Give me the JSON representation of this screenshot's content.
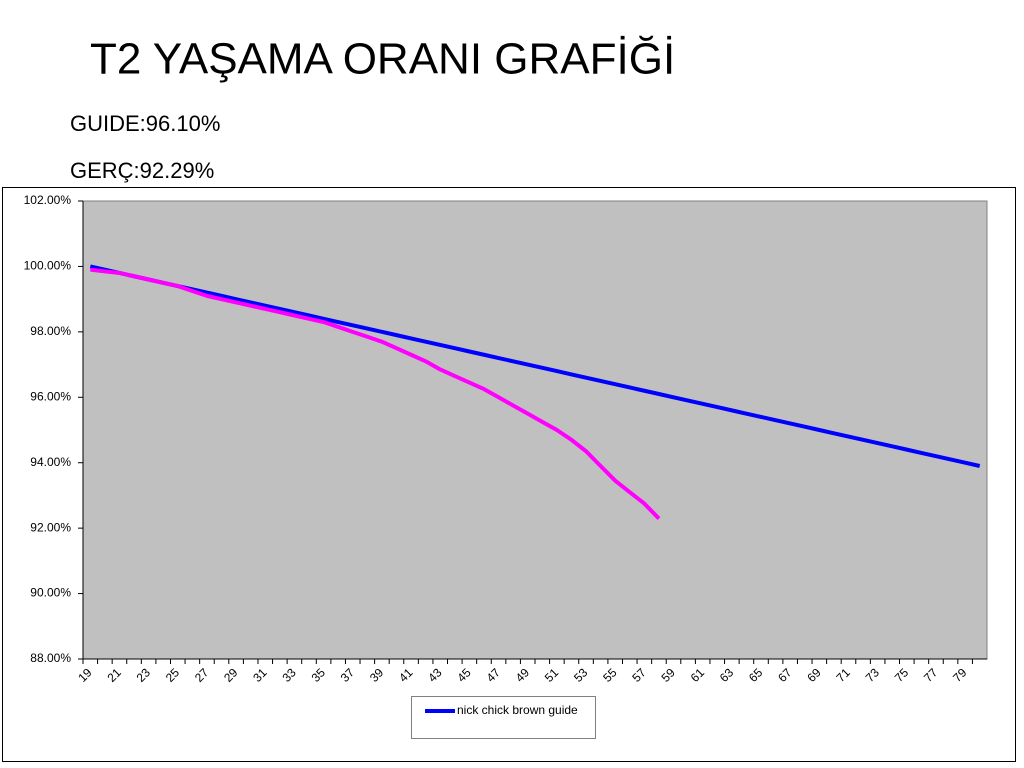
{
  "chart_data": {
    "type": "line",
    "title": "T2    YAŞAMA ORANI GRAFİĞİ",
    "annotations": [
      "GUIDE:96.10%",
      "GERÇ:92.29%"
    ],
    "categories": [
      19,
      null,
      21,
      null,
      23,
      null,
      25,
      null,
      27,
      null,
      29,
      null,
      31,
      null,
      33,
      null,
      35,
      null,
      37,
      null,
      39,
      null,
      41,
      null,
      43,
      null,
      45,
      null,
      47,
      null,
      49,
      null,
      51,
      null,
      53,
      null,
      55,
      null,
      57,
      null,
      59,
      null,
      61,
      null,
      63,
      null,
      65,
      null,
      67,
      null,
      69,
      null,
      71,
      null,
      73,
      null,
      75,
      null,
      77,
      null,
      79,
      null
    ],
    "series": [
      {
        "name": "nick chick brown guide",
        "color": "#0000ff",
        "values": [
          100.0,
          99.9,
          99.8,
          99.7,
          99.6,
          99.5,
          99.4,
          99.3,
          99.2,
          99.1,
          99.0,
          98.9,
          98.8,
          98.7,
          98.6,
          98.5,
          98.4,
          98.3,
          98.2,
          98.1,
          98.0,
          97.9,
          97.8,
          97.7,
          97.6,
          97.5,
          97.4,
          97.3,
          97.2,
          97.1,
          97.0,
          96.9,
          96.8,
          96.7,
          96.6,
          96.5,
          96.4,
          96.3,
          96.2,
          96.1,
          96.0,
          95.9,
          95.8,
          95.7,
          95.6,
          95.5,
          95.4,
          95.3,
          95.2,
          95.1,
          95.0,
          94.9,
          94.8,
          94.7,
          94.6,
          94.5,
          94.4,
          94.3,
          94.2,
          94.1,
          94.0,
          93.9
        ]
      },
      {
        "color": "#ff00ff",
        "values": [
          99.9,
          99.85,
          99.8,
          99.7,
          99.6,
          99.5,
          99.4,
          99.25,
          99.1,
          99.0,
          98.9,
          98.8,
          98.7,
          98.6,
          98.5,
          98.4,
          98.3,
          98.15,
          98.0,
          97.85,
          97.7,
          97.5,
          97.3,
          97.1,
          96.85,
          96.65,
          96.45,
          96.25,
          96.0,
          95.75,
          95.5,
          95.25,
          95.0,
          94.7,
          94.35,
          93.9,
          93.45,
          93.1,
          92.75,
          92.29,
          null,
          null,
          null,
          null,
          null,
          null,
          null,
          null,
          null,
          null,
          null,
          null,
          null,
          null,
          null,
          null,
          null,
          null,
          null,
          null,
          null,
          null
        ]
      }
    ],
    "ylim": [
      88,
      102
    ],
    "yticks": [
      {
        "value": 88,
        "label": "88.00%"
      },
      {
        "value": 90,
        "label": "90.00%"
      },
      {
        "value": 92,
        "label": "92.00%"
      },
      {
        "value": 94,
        "label": "94.00%"
      },
      {
        "value": 96,
        "label": "96.00%"
      },
      {
        "value": 98,
        "label": "98.00%"
      },
      {
        "value": 100,
        "label": "100.00%"
      },
      {
        "value": 102,
        "label": "102.00%"
      }
    ],
    "grid": false,
    "legend": "bottom"
  }
}
